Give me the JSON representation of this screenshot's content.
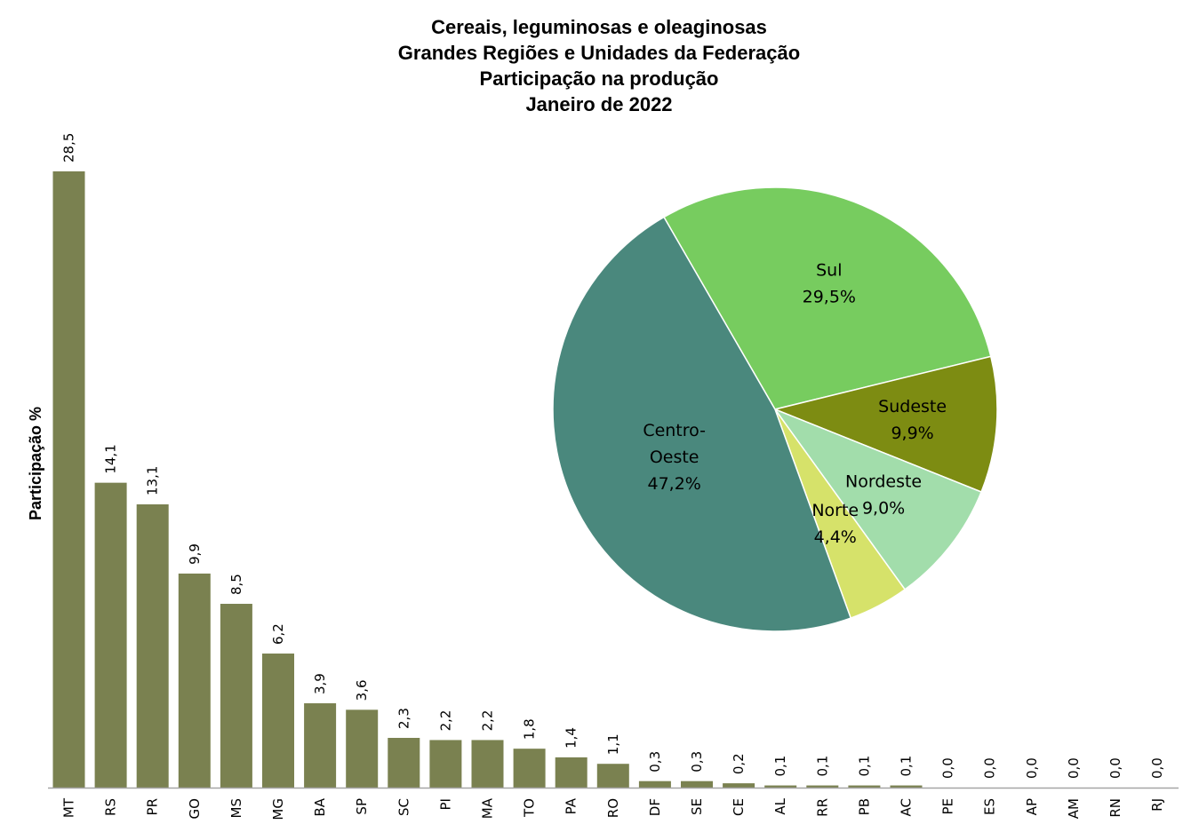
{
  "chart_data": [
    {
      "type": "bar",
      "title": [
        "Cereais, leguminosas e oleaginosas",
        "Grandes Regiões e Unidades da Federação",
        "Participação na produção",
        "Janeiro de 2022"
      ],
      "ylabel": "Participação %",
      "xlabel": "",
      "categories": [
        "MT",
        "RS",
        "PR",
        "GO",
        "MS",
        "MG",
        "BA",
        "SP",
        "SC",
        "PI",
        "MA",
        "TO",
        "PA",
        "RO",
        "DF",
        "SE",
        "CE",
        "AL",
        "RR",
        "PB",
        "AC",
        "PE",
        "ES",
        "AP",
        "AM",
        "RN",
        "RJ"
      ],
      "values": [
        28.5,
        14.1,
        13.1,
        9.9,
        8.5,
        6.2,
        3.9,
        3.6,
        2.3,
        2.2,
        2.2,
        1.8,
        1.4,
        1.1,
        0.3,
        0.3,
        0.2,
        0.1,
        0.1,
        0.1,
        0.1,
        0.0,
        0.0,
        0.0,
        0.0,
        0.0,
        0.0
      ],
      "value_labels": [
        "28,5",
        "14,1",
        "13,1",
        "9,9",
        "8,5",
        "6,2",
        "3,9",
        "3,6",
        "2,3",
        "2,2",
        "2,2",
        "1,8",
        "1,4",
        "1,1",
        "0,3",
        "0,3",
        "0,2",
        "0,1",
        "0,1",
        "0,1",
        "0,1",
        "0,0",
        "0,0",
        "0,0",
        "0,0",
        "0,0",
        "0,0"
      ],
      "ylim": [
        0,
        28.5
      ],
      "grid": false,
      "color": "#7a8150"
    },
    {
      "type": "pie",
      "slices": [
        {
          "label": "Sul",
          "value": 29.5,
          "value_label": "29,5%",
          "color": "#77cc5f"
        },
        {
          "label": "Sudeste",
          "value": 9.9,
          "value_label": "9,9%",
          "color": "#7d8c12"
        },
        {
          "label": "Nordeste",
          "value": 9.0,
          "value_label": "9,0%",
          "color": "#a2ddab"
        },
        {
          "label": "Norte",
          "value": 4.4,
          "value_label": "4,4%",
          "color": "#d6e26a"
        },
        {
          "label": "Centro-Oeste",
          "label_lines": [
            "Centro-",
            "Oeste"
          ],
          "value": 47.2,
          "value_label": "47,2%",
          "color": "#4a887d"
        }
      ]
    }
  ]
}
